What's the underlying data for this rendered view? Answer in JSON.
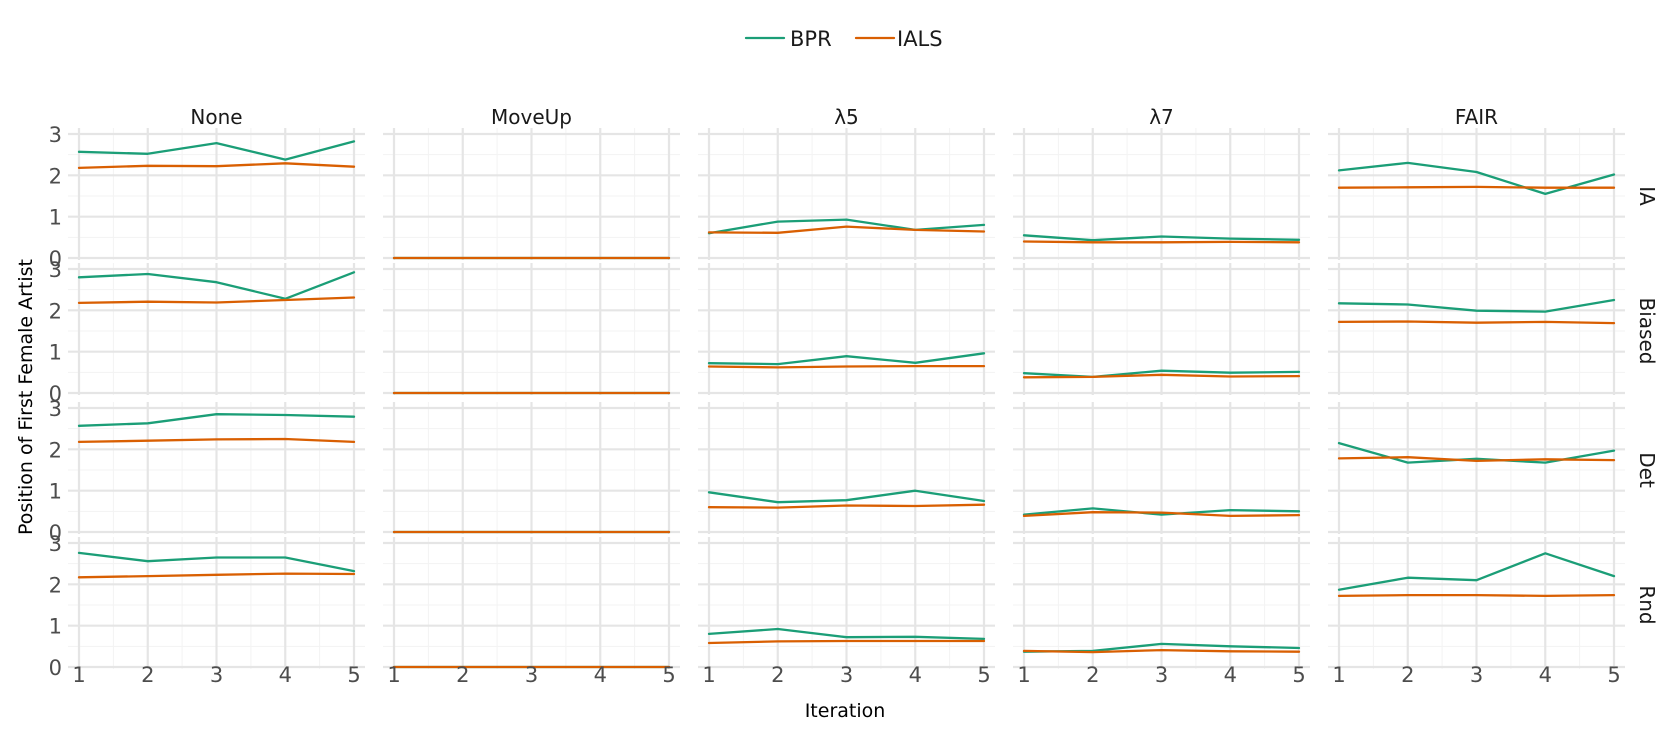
{
  "chart_data": {
    "type": "line",
    "xlabel": "Iteration",
    "ylabel": "Position of First Female Artist",
    "x": [
      1,
      2,
      3,
      4,
      5
    ],
    "x_ticks": [
      "1",
      "2",
      "3",
      "4",
      "5"
    ],
    "ylim": [
      0,
      3
    ],
    "y_ticks": [
      "0",
      "1",
      "2",
      "3"
    ],
    "grid": true,
    "legend_position": "top",
    "columns": [
      "None",
      "MoveUp",
      "λ5",
      "λ7",
      "FAIR"
    ],
    "rows": [
      "IA",
      "Biased",
      "Det",
      "Rnd"
    ],
    "series": [
      {
        "name": "BPR",
        "color": "#1b9e77"
      },
      {
        "name": "IALS",
        "color": "#d95f02"
      }
    ],
    "panels": [
      {
        "row": "IA",
        "col": "None",
        "BPR": [
          2.57,
          2.52,
          2.78,
          2.38,
          2.82
        ],
        "IALS": [
          2.18,
          2.23,
          2.22,
          2.29,
          2.21
        ]
      },
      {
        "row": "IA",
        "col": "MoveUp",
        "BPR": [
          0,
          0,
          0,
          0,
          0
        ],
        "IALS": [
          0,
          0,
          0,
          0,
          0
        ]
      },
      {
        "row": "IA",
        "col": "λ5",
        "BPR": [
          0.6,
          0.88,
          0.93,
          0.68,
          0.8
        ],
        "IALS": [
          0.62,
          0.61,
          0.76,
          0.68,
          0.64
        ]
      },
      {
        "row": "IA",
        "col": "λ7",
        "BPR": [
          0.55,
          0.43,
          0.52,
          0.47,
          0.44
        ],
        "IALS": [
          0.4,
          0.38,
          0.38,
          0.39,
          0.38
        ]
      },
      {
        "row": "IA",
        "col": "FAIR",
        "BPR": [
          2.12,
          2.3,
          2.08,
          1.55,
          2.02
        ],
        "IALS": [
          1.7,
          1.71,
          1.72,
          1.7,
          1.7
        ]
      },
      {
        "row": "Biased",
        "col": "None",
        "BPR": [
          2.8,
          2.88,
          2.68,
          2.28,
          2.92
        ],
        "IALS": [
          2.18,
          2.21,
          2.19,
          2.25,
          2.31
        ]
      },
      {
        "row": "Biased",
        "col": "MoveUp",
        "BPR": [
          0,
          0,
          0,
          0,
          0
        ],
        "IALS": [
          0,
          0,
          0,
          0,
          0
        ]
      },
      {
        "row": "Biased",
        "col": "λ5",
        "BPR": [
          0.72,
          0.7,
          0.89,
          0.73,
          0.96
        ],
        "IALS": [
          0.64,
          0.62,
          0.64,
          0.65,
          0.65
        ]
      },
      {
        "row": "Biased",
        "col": "λ7",
        "BPR": [
          0.48,
          0.39,
          0.54,
          0.49,
          0.51
        ],
        "IALS": [
          0.38,
          0.39,
          0.44,
          0.4,
          0.41
        ]
      },
      {
        "row": "Biased",
        "col": "FAIR",
        "BPR": [
          2.17,
          2.14,
          1.99,
          1.97,
          2.25
        ],
        "IALS": [
          1.72,
          1.73,
          1.7,
          1.72,
          1.69
        ]
      },
      {
        "row": "Det",
        "col": "None",
        "BPR": [
          2.57,
          2.63,
          2.85,
          2.83,
          2.79
        ],
        "IALS": [
          2.18,
          2.21,
          2.24,
          2.25,
          2.18
        ]
      },
      {
        "row": "Det",
        "col": "MoveUp",
        "BPR": [
          0,
          0,
          0,
          0,
          0
        ],
        "IALS": [
          0,
          0,
          0,
          0,
          0
        ]
      },
      {
        "row": "Det",
        "col": "λ5",
        "BPR": [
          0.96,
          0.72,
          0.77,
          1.0,
          0.75
        ],
        "IALS": [
          0.6,
          0.59,
          0.64,
          0.63,
          0.66
        ]
      },
      {
        "row": "Det",
        "col": "λ7",
        "BPR": [
          0.42,
          0.57,
          0.42,
          0.53,
          0.5
        ],
        "IALS": [
          0.39,
          0.48,
          0.47,
          0.39,
          0.41
        ]
      },
      {
        "row": "Det",
        "col": "FAIR",
        "BPR": [
          2.15,
          1.68,
          1.77,
          1.68,
          1.97
        ],
        "IALS": [
          1.78,
          1.81,
          1.72,
          1.76,
          1.74
        ]
      },
      {
        "row": "Rnd",
        "col": "None",
        "BPR": [
          2.76,
          2.56,
          2.65,
          2.65,
          2.32
        ],
        "IALS": [
          2.17,
          2.2,
          2.23,
          2.26,
          2.25
        ]
      },
      {
        "row": "Rnd",
        "col": "MoveUp",
        "BPR": [
          0,
          0,
          0,
          0,
          0
        ],
        "IALS": [
          0,
          0,
          0,
          0,
          0
        ]
      },
      {
        "row": "Rnd",
        "col": "λ5",
        "BPR": [
          0.8,
          0.92,
          0.72,
          0.73,
          0.68
        ],
        "IALS": [
          0.58,
          0.62,
          0.63,
          0.63,
          0.63
        ]
      },
      {
        "row": "Rnd",
        "col": "λ7",
        "BPR": [
          0.37,
          0.39,
          0.56,
          0.5,
          0.46
        ],
        "IALS": [
          0.39,
          0.36,
          0.41,
          0.38,
          0.37
        ]
      },
      {
        "row": "Rnd",
        "col": "FAIR",
        "BPR": [
          1.87,
          2.16,
          2.1,
          2.75,
          2.2
        ],
        "IALS": [
          1.72,
          1.74,
          1.74,
          1.72,
          1.74
        ]
      }
    ]
  }
}
